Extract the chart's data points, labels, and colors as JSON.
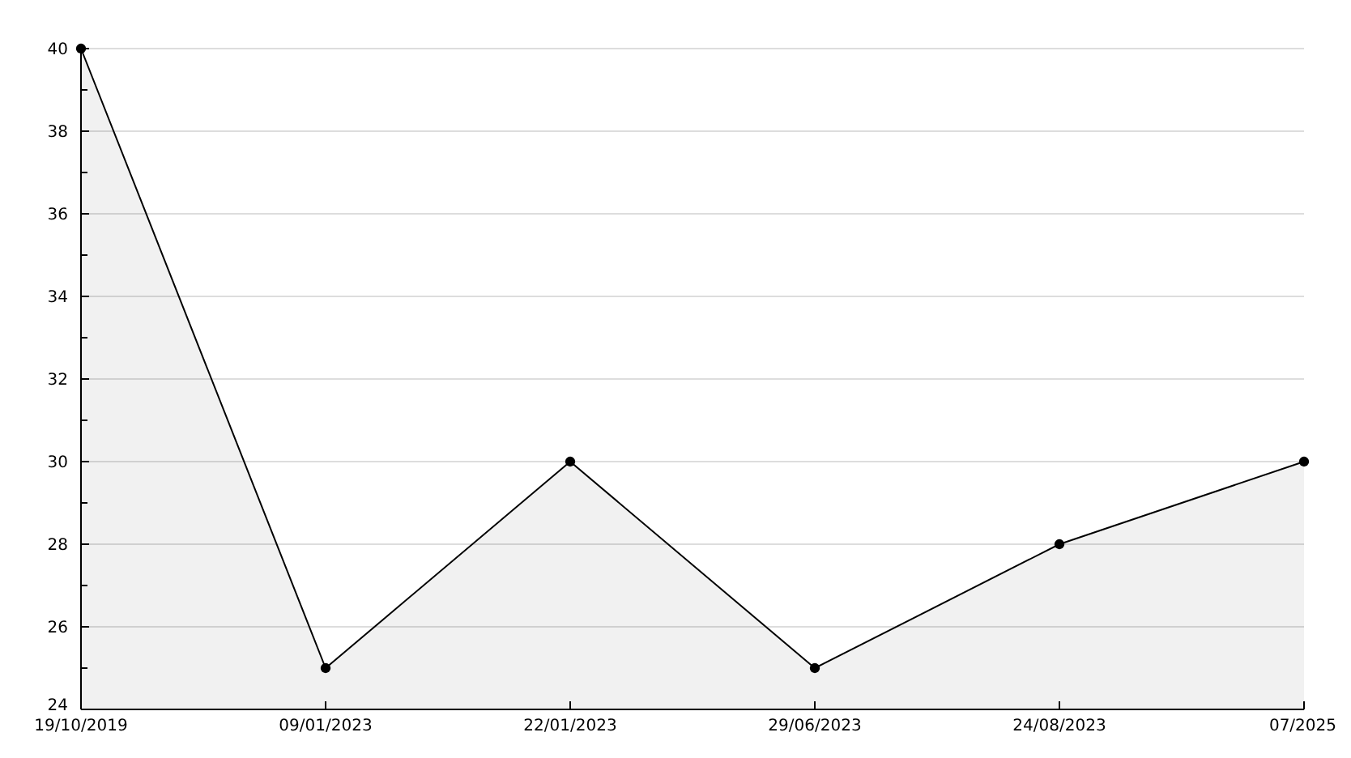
{
  "chart_data": {
    "type": "area",
    "categories": [
      "19/10/2019",
      "09/01/2023",
      "22/01/2023",
      "29/06/2023",
      "24/08/2023",
      "07/2025"
    ],
    "series": [
      {
        "color": "#000000",
        "values": [
          40,
          25,
          30,
          25,
          28,
          30
        ]
      }
    ],
    "ylim": [
      24,
      40
    ],
    "yticks": [
      24,
      {
        "value": 25,
        "label": null
      },
      26,
      {
        "value": 27,
        "label": null
      },
      28,
      {
        "value": 29,
        "label": null
      },
      30,
      {
        "value": 31,
        "label": null
      },
      32,
      {
        "value": 33,
        "label": null
      },
      34,
      {
        "value": 35,
        "label": null
      },
      36,
      {
        "value": 37,
        "label": null
      },
      38,
      {
        "value": 39,
        "label": null
      },
      40
    ],
    "grid": "y",
    "marker": "circle",
    "line_style": "solid"
  }
}
